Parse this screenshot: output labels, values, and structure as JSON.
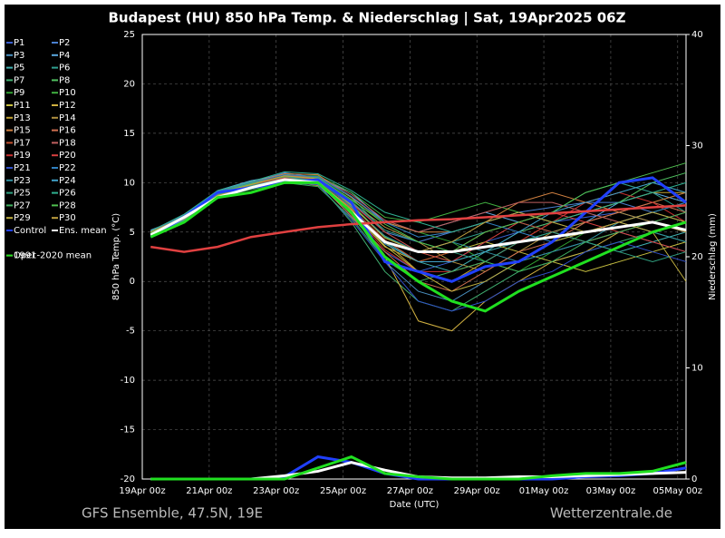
{
  "chart_data": {
    "type": "line",
    "title": "Budapest  (HU)  850 hPa Temp. & Niederschlag | Sat, 19Apr2025 06Z",
    "xlabel": "Date (UTC)",
    "ylabel": "850 hPa Temp. (°C)",
    "y2label": "Niederschlag (mm)",
    "source_left": "GFS Ensemble, 47.5N, 19E",
    "source_right": "Wetterzentrale.de",
    "grid": true,
    "xlim": [
      0,
      390
    ],
    "xticks": [
      {
        "value": 0,
        "label": "19Apr 00z"
      },
      {
        "value": 48,
        "label": "21Apr 00z"
      },
      {
        "value": 96,
        "label": "23Apr 00z"
      },
      {
        "value": 144,
        "label": "25Apr 00z"
      },
      {
        "value": 192,
        "label": "27Apr 00z"
      },
      {
        "value": 240,
        "label": "29Apr 00z"
      },
      {
        "value": 288,
        "label": "01May 00z"
      },
      {
        "value": 336,
        "label": "03May 00z"
      },
      {
        "value": 384,
        "label": "05May 00z"
      }
    ],
    "ylim": [
      -20,
      25
    ],
    "yticks": [
      -20,
      -15,
      -10,
      -5,
      0,
      5,
      10,
      15,
      20,
      25
    ],
    "y2lim": [
      0,
      40
    ],
    "y2ticks": [
      0,
      10,
      20,
      30,
      40
    ],
    "x": [
      6,
      30,
      54,
      78,
      102,
      126,
      150,
      174,
      198,
      222,
      246,
      270,
      294,
      318,
      342,
      366,
      390
    ],
    "series": [
      {
        "name": "P1",
        "color": "#3a5fd0",
        "values": [
          4.8,
          6.2,
          8.8,
          9.8,
          10.5,
          10.2,
          6.5,
          3,
          1,
          2,
          4,
          5,
          6,
          6.5,
          7,
          6,
          5
        ]
      },
      {
        "name": "P2",
        "color": "#4a80d0",
        "values": [
          5,
          6.8,
          9,
          10,
          11,
          10.5,
          8,
          5,
          4,
          5,
          6,
          7,
          7.5,
          8,
          8,
          7,
          6
        ]
      },
      {
        "name": "P3",
        "color": "#4a90c0",
        "values": [
          4.6,
          6,
          8.5,
          9.5,
          10,
          9.8,
          7,
          2,
          -1,
          -2,
          0,
          2,
          3,
          4,
          5,
          4,
          3
        ]
      },
      {
        "name": "P4",
        "color": "#5aa8e0",
        "values": [
          5.2,
          6.5,
          9.2,
          10.2,
          10.8,
          10.5,
          9,
          6,
          5,
          6,
          7,
          6,
          5,
          6,
          8,
          9,
          8
        ]
      },
      {
        "name": "P5",
        "color": "#40b0b0",
        "values": [
          4.9,
          6.4,
          8.6,
          9.6,
          10.2,
          10,
          7.5,
          4,
          2,
          1,
          3,
          4,
          5,
          4,
          3,
          4,
          5
        ]
      },
      {
        "name": "P6",
        "color": "#30a090",
        "values": [
          4.7,
          6.3,
          8.7,
          9.4,
          10.4,
          10.6,
          8.5,
          5,
          3,
          4,
          5,
          6,
          7,
          9,
          10,
          9,
          7
        ]
      },
      {
        "name": "P7",
        "color": "#40b070",
        "values": [
          4.5,
          6.1,
          8.4,
          9.7,
          10.6,
          9.9,
          6,
          1,
          -2,
          -3,
          -1,
          1,
          2,
          3,
          4,
          5,
          4
        ]
      },
      {
        "name": "P8",
        "color": "#50c060",
        "values": [
          5.1,
          6.6,
          8.9,
          9.9,
          10.9,
          10.3,
          7.8,
          4.5,
          3,
          2,
          3,
          5,
          6,
          7,
          8,
          10,
          11
        ]
      },
      {
        "name": "P9",
        "color": "#30a030",
        "values": [
          4.6,
          6.2,
          8.6,
          9.5,
          10.1,
          10.4,
          8.2,
          6,
          5,
          4,
          2,
          1,
          3,
          5,
          6,
          7,
          6
        ]
      },
      {
        "name": "P10",
        "color": "#40b040",
        "values": [
          4.8,
          6.5,
          8.8,
          9.8,
          10.7,
          10.7,
          9,
          6.5,
          6,
          7,
          8,
          7,
          6,
          5,
          6,
          7,
          8
        ]
      },
      {
        "name": "P11",
        "color": "#c8c040",
        "values": [
          4.9,
          6.3,
          9.1,
          10.1,
          10.3,
          10.1,
          7,
          3.5,
          2,
          3,
          4,
          3,
          2,
          1,
          2,
          3,
          4
        ]
      },
      {
        "name": "P12",
        "color": "#d0b040",
        "values": [
          5,
          6.6,
          8.7,
          9.6,
          10.5,
          10.2,
          6.8,
          2.5,
          -4,
          -5,
          -2,
          0,
          2,
          3,
          5,
          6,
          5
        ]
      },
      {
        "name": "P13",
        "color": "#c0a030",
        "values": [
          4.7,
          6.1,
          8.5,
          9.4,
          10.2,
          9.7,
          7.2,
          4,
          1,
          0,
          2,
          4,
          6,
          7,
          8,
          9,
          9
        ]
      },
      {
        "name": "P14",
        "color": "#b09040",
        "values": [
          4.8,
          6.4,
          8.9,
          9.9,
          10.6,
          10.3,
          8,
          5.5,
          4,
          2,
          1,
          3,
          5,
          6,
          7,
          6,
          5
        ]
      },
      {
        "name": "P15",
        "color": "#d08040",
        "values": [
          5.1,
          6.7,
          9,
          10,
          10.9,
          10.8,
          8.5,
          6,
          5,
          5,
          6,
          8,
          9,
          8,
          7,
          8,
          9
        ]
      },
      {
        "name": "P16",
        "color": "#d07050",
        "values": [
          4.6,
          6.2,
          8.6,
          9.5,
          10.3,
          10,
          6.6,
          3,
          0,
          -1,
          1,
          3,
          4,
          6,
          7,
          8,
          7
        ]
      },
      {
        "name": "P17",
        "color": "#c05030",
        "values": [
          4.9,
          6.5,
          8.8,
          9.7,
          10.4,
          10.1,
          7.4,
          4.2,
          2,
          3,
          5,
          6,
          5,
          4,
          5,
          6,
          7
        ]
      },
      {
        "name": "P18",
        "color": "#c06060",
        "values": [
          5,
          6.6,
          9,
          9.9,
          10.7,
          10.6,
          8.8,
          6.2,
          5,
          6,
          7,
          8,
          8,
          7,
          6,
          5,
          6
        ]
      },
      {
        "name": "P19",
        "color": "#c83030",
        "values": [
          4.7,
          6.3,
          8.6,
          9.6,
          10.2,
          9.9,
          7,
          3.2,
          1,
          1,
          2,
          4,
          6,
          8,
          9,
          8,
          6
        ]
      },
      {
        "name": "P20",
        "color": "#d84040",
        "values": [
          4.8,
          6.4,
          8.7,
          9.8,
          10.5,
          10.4,
          7.9,
          5,
          3,
          2,
          4,
          6,
          7,
          6,
          5,
          4,
          3
        ]
      },
      {
        "name": "P21",
        "color": "#3050c8",
        "values": [
          4.6,
          6,
          8.4,
          9.4,
          10,
          9.8,
          6.2,
          2,
          -2,
          -3,
          -2,
          0,
          1,
          3,
          4,
          3,
          2
        ]
      },
      {
        "name": "P22",
        "color": "#3080c0",
        "values": [
          5,
          6.7,
          9.1,
          10,
          10.8,
          10.6,
          8.6,
          6,
          4.5,
          5,
          6,
          5,
          4,
          5,
          6,
          7,
          8
        ]
      },
      {
        "name": "P23",
        "color": "#3090a0",
        "values": [
          4.9,
          6.5,
          8.9,
          9.9,
          10.6,
          10.2,
          7.6,
          4.6,
          3,
          4,
          3,
          2,
          3,
          4,
          6,
          5,
          4
        ]
      },
      {
        "name": "P24",
        "color": "#40a0c8",
        "values": [
          4.7,
          6.2,
          8.5,
          9.5,
          10.1,
          10,
          7.1,
          3.8,
          2,
          2,
          3,
          5,
          7,
          8,
          9,
          10,
          9
        ]
      },
      {
        "name": "P25",
        "color": "#30a080",
        "values": [
          4.8,
          6.3,
          8.8,
          9.7,
          10.4,
          10.3,
          8.1,
          5.2,
          4,
          3,
          2,
          4,
          5,
          4,
          3,
          2,
          3
        ]
      },
      {
        "name": "P26",
        "color": "#30b090",
        "values": [
          5.1,
          6.8,
          9.2,
          10.1,
          11.1,
          10.9,
          9.2,
          7,
          6,
          5,
          6,
          7,
          6,
          7,
          8,
          9,
          10
        ]
      },
      {
        "name": "P27",
        "color": "#40b060",
        "values": [
          4.6,
          6.1,
          8.5,
          9.3,
          10,
          9.6,
          6.4,
          2.2,
          0,
          1,
          2,
          1,
          2,
          4,
          5,
          6,
          7
        ]
      },
      {
        "name": "P28",
        "color": "#50c050",
        "values": [
          4.9,
          6.6,
          9,
          9.9,
          10.6,
          10.5,
          8.3,
          5.8,
          4,
          3,
          5,
          6,
          7,
          9,
          10,
          11,
          12
        ]
      },
      {
        "name": "P29",
        "color": "#c0b040",
        "values": [
          4.8,
          6.3,
          8.7,
          9.6,
          10.3,
          10.1,
          7.3,
          3.6,
          1,
          -1,
          0,
          2,
          4,
          5,
          6,
          5,
          0
        ]
      },
      {
        "name": "P30",
        "color": "#c0a040",
        "values": [
          5,
          6.5,
          8.9,
          9.8,
          10.7,
          10.4,
          7.7,
          4.4,
          3,
          4,
          6,
          7,
          6,
          5,
          6,
          7,
          6
        ]
      },
      {
        "name": "Control",
        "color": "#2040ff",
        "width": 3,
        "values": [
          4.5,
          6.5,
          9,
          9.5,
          10,
          10.3,
          8,
          2,
          1,
          0,
          1.5,
          2,
          4,
          7,
          10,
          10.5,
          8
        ],
        "precip": [
          0,
          0,
          0,
          0,
          0.2,
          2,
          1.5,
          0.5,
          0,
          0,
          0,
          0,
          0,
          0.2,
          0.3,
          0.5,
          1
        ]
      },
      {
        "name": "Ens. mean",
        "color": "#ffffff",
        "width": 3,
        "values": [
          4.7,
          6.5,
          8.5,
          9.5,
          10.3,
          10,
          7,
          4,
          3,
          3,
          3.5,
          4,
          4.5,
          5,
          5.5,
          6,
          5.2
        ],
        "precip": [
          0,
          0,
          0,
          0,
          0.3,
          0.7,
          1.5,
          0.8,
          0.2,
          0.1,
          0.1,
          0.2,
          0.2,
          0.3,
          0.4,
          0.5,
          0.6
        ]
      },
      {
        "name": "1991-2020 mean",
        "color": "#e04040",
        "width": 2.5,
        "values": [
          3.5,
          3,
          3.5,
          4.5,
          5,
          5.5,
          5.8,
          6,
          6.2,
          6.3,
          6.5,
          6.7,
          6.9,
          7.1,
          7.3,
          7.5,
          7.7
        ]
      },
      {
        "name": "Oper",
        "color": "#20e020",
        "width": 3,
        "values": [
          4.5,
          6,
          8.5,
          9,
          10,
          10,
          7,
          2.5,
          0,
          -2,
          -3,
          -1,
          0.5,
          2,
          3.5,
          5,
          6
        ],
        "precip": [
          0,
          0,
          0,
          0,
          0,
          1,
          2,
          0.5,
          0.2,
          0,
          0,
          0,
          0.3,
          0.5,
          0.5,
          0.7,
          1.5
        ]
      }
    ]
  }
}
